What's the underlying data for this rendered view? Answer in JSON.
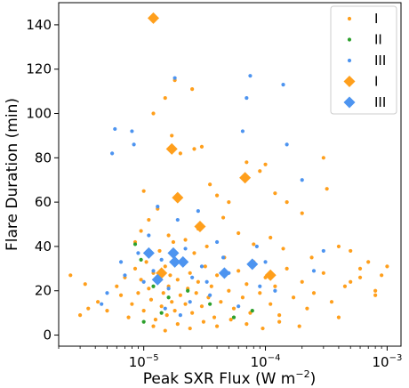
{
  "chart_data": {
    "type": "scatter",
    "xscale": "log",
    "xlim": [
      2e-06,
      0.0013
    ],
    "ylim": [
      -5,
      150
    ],
    "xlabel": "Peak SXR Flux (W m$^{-2}$)",
    "xlabel_main": "Peak SXR Flux (W m",
    "xlabel_exp": "−2",
    "xlabel_close": ")",
    "ylabel": "Flare Duration (min)",
    "yticks": [
      0,
      20,
      40,
      60,
      80,
      100,
      120,
      140
    ],
    "ytick_labels": [
      "0",
      "20",
      "40",
      "60",
      "80",
      "100",
      "120",
      "140"
    ],
    "xticks": [
      1e-05,
      0.0001,
      0.001
    ],
    "xtick_labels": [
      {
        "base": "10",
        "exp": "−5"
      },
      {
        "base": "10",
        "exp": "−4"
      },
      {
        "base": "10",
        "exp": "−3"
      }
    ],
    "legend_position": "top-right",
    "colors": {
      "I": "#ff9f1c",
      "II": "#2ca02c",
      "III": "#4d94f0"
    },
    "series": [
      {
        "name": "I",
        "marker": "dot",
        "color": "#ff9f1c",
        "points": [
          [
            2.5e-06,
            27
          ],
          [
            3e-06,
            9
          ],
          [
            3.3e-06,
            23
          ],
          [
            3.5e-06,
            12
          ],
          [
            4.2e-06,
            15
          ],
          [
            5e-06,
            11
          ],
          [
            6e-06,
            22
          ],
          [
            6.5e-06,
            18
          ],
          [
            7e-06,
            26
          ],
          [
            7.5e-06,
            8
          ],
          [
            8e-06,
            14
          ],
          [
            8.5e-06,
            30
          ],
          [
            9e-06,
            19
          ],
          [
            9.5e-06,
            25
          ],
          [
            1e-05,
            11
          ],
          [
            1.05e-05,
            33
          ],
          [
            1.1e-05,
            21
          ],
          [
            1.15e-05,
            16
          ],
          [
            1.2e-05,
            28
          ],
          [
            1.25e-05,
            7
          ],
          [
            1.3e-05,
            24
          ],
          [
            1.35e-05,
            38
          ],
          [
            1.4e-05,
            13
          ],
          [
            1.45e-05,
            19
          ],
          [
            1.5e-05,
            31
          ],
          [
            1.55e-05,
            9
          ],
          [
            1.6e-05,
            22
          ],
          [
            1.65e-05,
            27
          ],
          [
            1.7e-05,
            15
          ],
          [
            1.75e-05,
            42
          ],
          [
            1.8e-05,
            11
          ],
          [
            1.9e-05,
            25
          ],
          [
            2e-05,
            18
          ],
          [
            2.1e-05,
            34
          ],
          [
            2.2e-05,
            14
          ],
          [
            2.3e-05,
            21
          ],
          [
            2.4e-05,
            28
          ],
          [
            2.5e-05,
            10
          ],
          [
            2.6e-05,
            37
          ],
          [
            2.7e-05,
            19
          ],
          [
            2.8e-05,
            24
          ],
          [
            3e-05,
            13
          ],
          [
            3.2e-05,
            31
          ],
          [
            3.4e-05,
            17
          ],
          [
            3.6e-05,
            22
          ],
          [
            3.8e-05,
            8
          ],
          [
            4e-05,
            27
          ],
          [
            4.3e-05,
            15
          ],
          [
            4.6e-05,
            35
          ],
          [
            5e-05,
            20
          ],
          [
            5.5e-05,
            12
          ],
          [
            6e-05,
            29
          ],
          [
            6.5e-05,
            17
          ],
          [
            7e-05,
            23
          ],
          [
            7.5e-05,
            10
          ],
          [
            8e-05,
            33
          ],
          [
            9e-05,
            19
          ],
          [
            0.0001,
            26
          ],
          [
            0.00011,
            14
          ],
          [
            0.00012,
            22
          ],
          [
            0.00013,
            9
          ],
          [
            0.00015,
            30
          ],
          [
            0.00017,
            17
          ],
          [
            0.0002,
            24
          ],
          [
            0.00022,
            12
          ],
          [
            0.00025,
            19
          ],
          [
            0.0003,
            28
          ],
          [
            0.00035,
            15
          ],
          [
            0.0004,
            8
          ],
          [
            0.00045,
            22
          ],
          [
            0.0005,
            38
          ],
          [
            0.0006,
            26
          ],
          [
            0.0007,
            33
          ],
          [
            0.0008,
            20
          ],
          [
            0.0009,
            27
          ],
          [
            0.001,
            31
          ],
          [
            1.2e-05,
            100
          ],
          [
            1.5e-05,
            107
          ],
          [
            1.8e-05,
            115
          ],
          [
            2.5e-05,
            111
          ],
          [
            1.7e-05,
            90
          ],
          [
            2e-05,
            82
          ],
          [
            2.6e-05,
            84
          ],
          [
            3e-05,
            85
          ],
          [
            3.5e-05,
            68
          ],
          [
            4e-05,
            63
          ],
          [
            5e-05,
            60
          ],
          [
            7e-05,
            78
          ],
          [
            9e-05,
            74
          ],
          [
            0.0001,
            77
          ],
          [
            0.00012,
            64
          ],
          [
            0.00015,
            60
          ],
          [
            0.0002,
            55
          ],
          [
            0.0003,
            80
          ],
          [
            0.00032,
            66
          ],
          [
            0.0005,
            24
          ],
          [
            0.0008,
            18
          ],
          [
            1e-05,
            65
          ],
          [
            8.5e-06,
            42
          ],
          [
            9.5e-06,
            47
          ],
          [
            1.1e-05,
            52
          ],
          [
            1.3e-05,
            57
          ],
          [
            1.6e-05,
            45
          ],
          [
            2.2e-05,
            43
          ],
          [
            2.8e-05,
            48
          ],
          [
            3.3e-05,
            40
          ],
          [
            4.5e-05,
            53
          ],
          [
            6e-05,
            46
          ],
          [
            8e-05,
            41
          ],
          [
            0.00011,
            44
          ],
          [
            0.00014,
            39
          ],
          [
            0.00024,
            35
          ],
          [
            0.0004,
            40
          ],
          [
            0.0006,
            30
          ],
          [
            1.2e-05,
            4
          ],
          [
            1.5e-05,
            2
          ],
          [
            1.9e-05,
            5
          ],
          [
            2.4e-05,
            3
          ],
          [
            3.1e-05,
            6
          ],
          [
            4e-05,
            4
          ],
          [
            5.2e-05,
            7
          ],
          [
            7e-05,
            5
          ],
          [
            9.5e-05,
            3
          ],
          [
            0.00013,
            6
          ],
          [
            0.00019,
            4
          ]
        ]
      },
      {
        "name": "II",
        "marker": "dot",
        "color": "#2ca02c",
        "points": [
          [
            8.5e-06,
            41
          ],
          [
            9.5e-06,
            34
          ],
          [
            1.2e-05,
            22
          ],
          [
            1.4e-05,
            10
          ],
          [
            1.6e-05,
            17
          ],
          [
            2.3e-05,
            20
          ],
          [
            3.5e-05,
            14
          ],
          [
            5.5e-05,
            8
          ],
          [
            7.8e-05,
            11
          ],
          [
            1e-05,
            6
          ]
        ]
      },
      {
        "name": "III",
        "marker": "dot",
        "color": "#4d94f0",
        "points": [
          [
            4.5e-06,
            14
          ],
          [
            5e-06,
            19
          ],
          [
            5.5e-06,
            82
          ],
          [
            5.8e-06,
            93
          ],
          [
            6.5e-06,
            33
          ],
          [
            7e-06,
            27
          ],
          [
            8e-06,
            92
          ],
          [
            8.3e-06,
            86
          ],
          [
            9e-06,
            37
          ],
          [
            1e-05,
            24
          ],
          [
            1.1e-05,
            45
          ],
          [
            1.2e-05,
            29
          ],
          [
            1.3e-05,
            58
          ],
          [
            1.4e-05,
            34
          ],
          [
            1.6e-05,
            21
          ],
          [
            1.8e-05,
            116
          ],
          [
            1.9e-05,
            52
          ],
          [
            2.2e-05,
            39
          ],
          [
            2.5e-05,
            26
          ],
          [
            2.8e-05,
            56
          ],
          [
            3e-05,
            31
          ],
          [
            3.5e-05,
            18
          ],
          [
            4e-05,
            42
          ],
          [
            4.5e-05,
            35
          ],
          [
            5e-05,
            28
          ],
          [
            6.5e-05,
            92
          ],
          [
            7e-05,
            107
          ],
          [
            7.5e-05,
            117
          ],
          [
            8.5e-05,
            40
          ],
          [
            0.0001,
            33
          ],
          [
            0.00012,
            20
          ],
          [
            0.00014,
            113
          ],
          [
            0.00015,
            86
          ],
          [
            0.0002,
            70
          ],
          [
            0.00025,
            29
          ],
          [
            0.0003,
            38
          ],
          [
            1.5e-05,
            12
          ],
          [
            2e-05,
            9
          ],
          [
            2.4e-05,
            15
          ],
          [
            3.3e-05,
            24
          ],
          [
            6e-05,
            13
          ],
          [
            9e-05,
            22
          ]
        ]
      },
      {
        "name": "I",
        "marker": "diamond",
        "color": "#ff9f1c",
        "points": [
          [
            1.2e-05,
            143
          ],
          [
            1.7e-05,
            84
          ],
          [
            1.9e-05,
            62
          ],
          [
            2.9e-05,
            49
          ],
          [
            6.8e-05,
            71
          ],
          [
            0.00011,
            27
          ],
          [
            1.4e-05,
            28
          ]
        ]
      },
      {
        "name": "III",
        "marker": "diamond",
        "color": "#4d94f0",
        "points": [
          [
            1.1e-05,
            37
          ],
          [
            1.75e-05,
            37
          ],
          [
            1.8e-05,
            33
          ],
          [
            2.1e-05,
            33
          ],
          [
            4.6e-05,
            28
          ],
          [
            7.8e-05,
            32
          ],
          [
            1.3e-05,
            25
          ]
        ]
      }
    ],
    "legend": [
      {
        "label": "I",
        "marker": "dot",
        "color": "#ff9f1c"
      },
      {
        "label": "II",
        "marker": "dot",
        "color": "#2ca02c"
      },
      {
        "label": "III",
        "marker": "dot",
        "color": "#4d94f0"
      },
      {
        "label": "I",
        "marker": "diamond",
        "color": "#ff9f1c"
      },
      {
        "label": "III",
        "marker": "diamond",
        "color": "#4d94f0"
      }
    ]
  }
}
